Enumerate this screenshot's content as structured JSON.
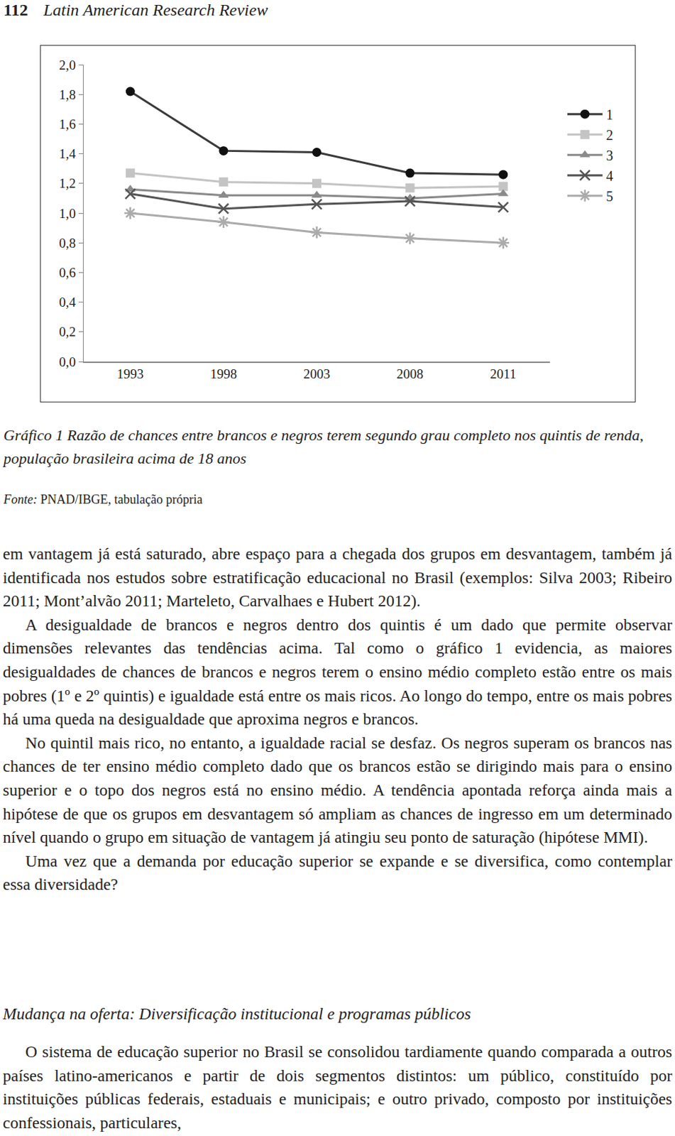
{
  "header": {
    "page": "112",
    "journal": "Latin American Research Review"
  },
  "chart_data": {
    "type": "line",
    "title": "Gráfico 1 Razão de chances entre brancos e negros terem segundo grau completo nos quintis de renda, população brasileira acima de 18 anos",
    "categories": [
      "1993",
      "1998",
      "2003",
      "2008",
      "2011"
    ],
    "series": [
      {
        "name": "1",
        "color": "#3a3a3a",
        "marker": "circle",
        "values": [
          1.82,
          1.42,
          1.41,
          1.27,
          1.26
        ]
      },
      {
        "name": "2",
        "color": "#c4c4c4",
        "marker": "square",
        "values": [
          1.27,
          1.21,
          1.2,
          1.17,
          1.18
        ]
      },
      {
        "name": "3",
        "color": "#8a8a8a",
        "marker": "triangle",
        "values": [
          1.16,
          1.12,
          1.12,
          1.1,
          1.13
        ]
      },
      {
        "name": "4",
        "color": "#555555",
        "marker": "x",
        "values": [
          1.13,
          1.03,
          1.06,
          1.08,
          1.04
        ]
      },
      {
        "name": "5",
        "color": "#ababab",
        "marker": "asterisk",
        "values": [
          1.0,
          0.94,
          0.87,
          0.83,
          0.8
        ]
      }
    ],
    "ylim": [
      0,
      2
    ],
    "yticks": [
      {
        "value": 0,
        "label": "0,0"
      },
      {
        "value": 0.2,
        "label": "0,2"
      },
      {
        "value": 0.4,
        "label": "0,4"
      },
      {
        "value": 0.6,
        "label": "0,6"
      },
      {
        "value": 0.8,
        "label": "0,8"
      },
      {
        "value": 1,
        "label": "1,0"
      },
      {
        "value": 1.2,
        "label": "1,2"
      },
      {
        "value": 1.4,
        "label": "1,4"
      },
      {
        "value": 1.6,
        "label": "1,6"
      },
      {
        "value": 1.8,
        "label": "1,8"
      },
      {
        "value": 2,
        "label": "2,0"
      }
    ],
    "grid": false,
    "legend": "right"
  },
  "source": {
    "label": "Fonte:",
    "text": "PNAD/IBGE, tabulação própria"
  },
  "paragraphs": [
    "em vantagem já está saturado, abre espaço para a chegada dos grupos em desvantagem, também já identificada nos estudos sobre estratificação educacional no Brasil (exemplos: Silva 2003; Ribeiro 2011; Mont’alvão 2011; Marteleto, Carvalhaes e Hubert 2012).",
    "A desigualdade de brancos e negros dentro dos quintis é um dado que permite observar dimensões relevantes das tendências acima. Tal como o gráfico 1 evidencia, as maiores desigualdades de chances de brancos e negros terem o ensino médio completo estão entre os mais pobres (1º e 2º quintis) e igualdade está entre os mais ricos. Ao longo do tempo, entre os mais pobres há uma queda na desigualdade que aproxima negros e brancos.",
    "No quintil mais rico, no entanto, a igualdade racial se desfaz. Os negros superam os brancos nas chances de ter ensino médio completo dado que os brancos estão se dirigindo mais para o ensino superior e o topo dos negros está no ensino médio. A tendência apontada reforça ainda mais a hipótese de que os grupos em desvantagem só ampliam as chances de ingresso em um determinado nível quando o grupo em situação de vantagem já atingiu seu ponto de saturação (hipótese MMI).",
    "Uma vez que a demanda por educação superior se expande e se diversifica, como contemplar essa diversidade?"
  ],
  "section": {
    "heading": "Mudança na oferta: Diversificação institucional e programas públicos",
    "paragraphs": [
      "O sistema de educação superior no Brasil se consolidou tardiamente quando comparada a outros países latino-americanos e partir de dois segmentos distintos: um público, constituído por instituições públicas federais, estaduais e municipais; e outro privado, composto por instituições confessionais, particulares,"
    ]
  }
}
